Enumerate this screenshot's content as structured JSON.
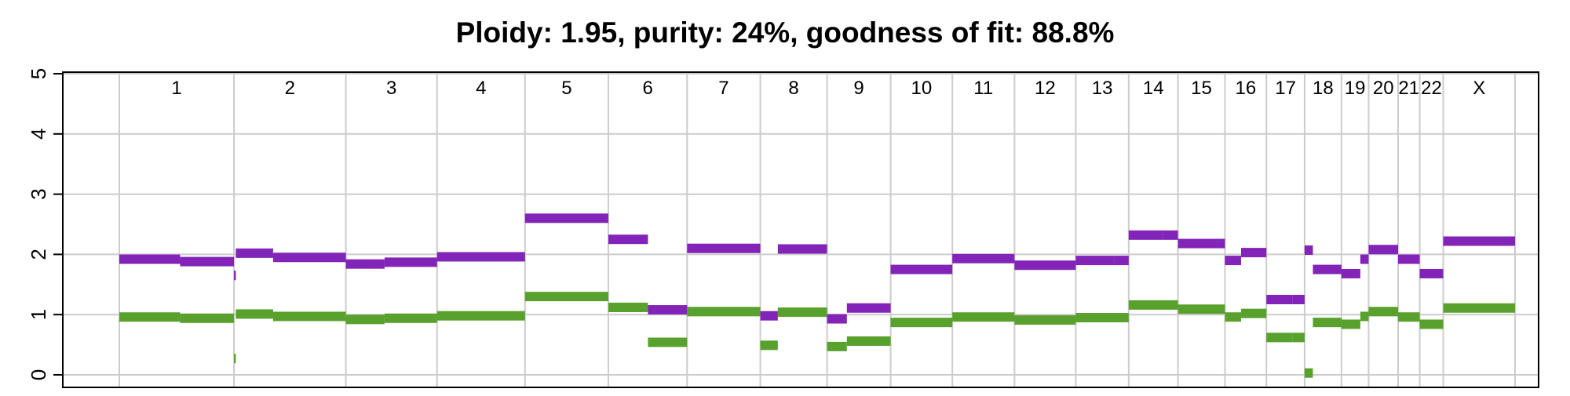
{
  "chart_data": {
    "type": "segment",
    "title": "Ploidy: 1.95, purity: 24%, goodness of fit: 88.8%",
    "xlabel": "",
    "ylabel": "",
    "ylim": [
      0,
      5
    ],
    "yticks": [
      0,
      1,
      2,
      3,
      4,
      5
    ],
    "grid": true,
    "legend": "none",
    "colors": {
      "major": "#8224b8",
      "minor": "#58a12c",
      "grid": "#cccccc"
    },
    "x_unit": "Mb (cumulative genome position)",
    "chromosomes": [
      {
        "name": "1",
        "start": 0,
        "end": 249
      },
      {
        "name": "2",
        "start": 249,
        "end": 492
      },
      {
        "name": "3",
        "start": 492,
        "end": 690
      },
      {
        "name": "4",
        "start": 690,
        "end": 881
      },
      {
        "name": "5",
        "start": 881,
        "end": 1062
      },
      {
        "name": "6",
        "start": 1062,
        "end": 1233
      },
      {
        "name": "7",
        "start": 1233,
        "end": 1392
      },
      {
        "name": "8",
        "start": 1392,
        "end": 1537
      },
      {
        "name": "9",
        "start": 1537,
        "end": 1675
      },
      {
        "name": "10",
        "start": 1675,
        "end": 1809
      },
      {
        "name": "11",
        "start": 1809,
        "end": 1944
      },
      {
        "name": "12",
        "start": 1944,
        "end": 2077
      },
      {
        "name": "13",
        "start": 2077,
        "end": 2192
      },
      {
        "name": "14",
        "start": 2192,
        "end": 2299
      },
      {
        "name": "15",
        "start": 2299,
        "end": 2401
      },
      {
        "name": "16",
        "start": 2401,
        "end": 2491
      },
      {
        "name": "17",
        "start": 2491,
        "end": 2574
      },
      {
        "name": "18",
        "start": 2574,
        "end": 2654
      },
      {
        "name": "19",
        "start": 2654,
        "end": 2713
      },
      {
        "name": "20",
        "start": 2713,
        "end": 2777
      },
      {
        "name": "21",
        "start": 2777,
        "end": 2824
      },
      {
        "name": "22",
        "start": 2824,
        "end": 2875
      },
      {
        "name": "X",
        "start": 2875,
        "end": 3031
      }
    ],
    "series": [
      {
        "id": "major",
        "segments": [
          {
            "start": 0,
            "end": 132,
            "value": 1.92
          },
          {
            "start": 132,
            "end": 249,
            "value": 1.88
          },
          {
            "start": 249,
            "end": 253,
            "value": 1.65
          },
          {
            "start": 253,
            "end": 334,
            "value": 2.02
          },
          {
            "start": 334,
            "end": 492,
            "value": 1.95
          },
          {
            "start": 492,
            "end": 576,
            "value": 1.84
          },
          {
            "start": 576,
            "end": 690,
            "value": 1.87
          },
          {
            "start": 690,
            "end": 881,
            "value": 1.96
          },
          {
            "start": 881,
            "end": 1062,
            "value": 2.6
          },
          {
            "start": 1062,
            "end": 1148,
            "value": 2.25
          },
          {
            "start": 1148,
            "end": 1233,
            "value": 1.08
          },
          {
            "start": 1233,
            "end": 1392,
            "value": 2.1
          },
          {
            "start": 1392,
            "end": 1430,
            "value": 0.98
          },
          {
            "start": 1430,
            "end": 1537,
            "value": 2.09
          },
          {
            "start": 1537,
            "end": 1580,
            "value": 0.93
          },
          {
            "start": 1580,
            "end": 1675,
            "value": 1.11
          },
          {
            "start": 1675,
            "end": 1809,
            "value": 1.75
          },
          {
            "start": 1809,
            "end": 1944,
            "value": 1.93
          },
          {
            "start": 1944,
            "end": 2077,
            "value": 1.82
          },
          {
            "start": 2077,
            "end": 2160,
            "value": 1.9
          },
          {
            "start": 2160,
            "end": 2192,
            "value": 1.9
          },
          {
            "start": 2192,
            "end": 2267,
            "value": 2.32
          },
          {
            "start": 2267,
            "end": 2299,
            "value": 2.32
          },
          {
            "start": 2299,
            "end": 2384,
            "value": 2.18
          },
          {
            "start": 2384,
            "end": 2401,
            "value": 2.18
          },
          {
            "start": 2401,
            "end": 2436,
            "value": 1.9
          },
          {
            "start": 2436,
            "end": 2491,
            "value": 2.03
          },
          {
            "start": 2491,
            "end": 2548,
            "value": 1.25
          },
          {
            "start": 2548,
            "end": 2574,
            "value": 1.25
          },
          {
            "start": 2574,
            "end": 2592,
            "value": 2.07
          },
          {
            "start": 2592,
            "end": 2654,
            "value": 1.75
          },
          {
            "start": 2654,
            "end": 2695,
            "value": 1.68
          },
          {
            "start": 2695,
            "end": 2713,
            "value": 1.92
          },
          {
            "start": 2713,
            "end": 2777,
            "value": 2.08
          },
          {
            "start": 2777,
            "end": 2824,
            "value": 1.92
          },
          {
            "start": 2824,
            "end": 2875,
            "value": 1.68
          },
          {
            "start": 2875,
            "end": 3031,
            "value": 2.22
          }
        ]
      },
      {
        "id": "minor",
        "segments": [
          {
            "start": 0,
            "end": 132,
            "value": 0.96
          },
          {
            "start": 132,
            "end": 249,
            "value": 0.94
          },
          {
            "start": 249,
            "end": 253,
            "value": 0.27
          },
          {
            "start": 253,
            "end": 334,
            "value": 1.01
          },
          {
            "start": 334,
            "end": 492,
            "value": 0.97
          },
          {
            "start": 492,
            "end": 576,
            "value": 0.92
          },
          {
            "start": 576,
            "end": 690,
            "value": 0.94
          },
          {
            "start": 690,
            "end": 881,
            "value": 0.98
          },
          {
            "start": 881,
            "end": 1062,
            "value": 1.3
          },
          {
            "start": 1062,
            "end": 1148,
            "value": 1.12
          },
          {
            "start": 1148,
            "end": 1233,
            "value": 0.54
          },
          {
            "start": 1233,
            "end": 1392,
            "value": 1.05
          },
          {
            "start": 1392,
            "end": 1430,
            "value": 0.49
          },
          {
            "start": 1430,
            "end": 1537,
            "value": 1.04
          },
          {
            "start": 1537,
            "end": 1580,
            "value": 0.47
          },
          {
            "start": 1580,
            "end": 1675,
            "value": 0.56
          },
          {
            "start": 1675,
            "end": 1809,
            "value": 0.87
          },
          {
            "start": 1809,
            "end": 1944,
            "value": 0.96
          },
          {
            "start": 1944,
            "end": 2077,
            "value": 0.91
          },
          {
            "start": 2077,
            "end": 2192,
            "value": 0.95
          },
          {
            "start": 2192,
            "end": 2299,
            "value": 1.16
          },
          {
            "start": 2299,
            "end": 2401,
            "value": 1.09
          },
          {
            "start": 2401,
            "end": 2436,
            "value": 0.96
          },
          {
            "start": 2436,
            "end": 2491,
            "value": 1.02
          },
          {
            "start": 2491,
            "end": 2548,
            "value": 0.62
          },
          {
            "start": 2548,
            "end": 2574,
            "value": 0.62
          },
          {
            "start": 2574,
            "end": 2592,
            "value": 0.03
          },
          {
            "start": 2592,
            "end": 2654,
            "value": 0.87
          },
          {
            "start": 2654,
            "end": 2695,
            "value": 0.84
          },
          {
            "start": 2695,
            "end": 2713,
            "value": 0.97
          },
          {
            "start": 2713,
            "end": 2777,
            "value": 1.05
          },
          {
            "start": 2777,
            "end": 2824,
            "value": 0.96
          },
          {
            "start": 2824,
            "end": 2875,
            "value": 0.84
          },
          {
            "start": 2875,
            "end": 3031,
            "value": 1.11
          }
        ]
      }
    ]
  }
}
